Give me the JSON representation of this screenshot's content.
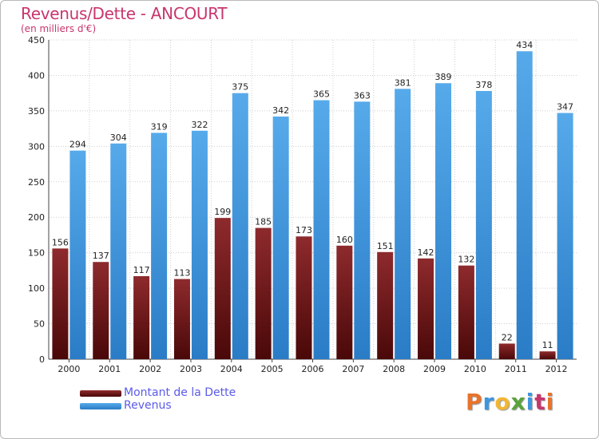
{
  "chart_data": {
    "type": "bar",
    "title": "Revenus/Dette - ANCOURT",
    "subtitle": "(en milliers d'€)",
    "xlabel": "",
    "ylabel": "",
    "ylim": [
      0,
      450
    ],
    "yticks": [
      0,
      50,
      100,
      150,
      200,
      250,
      300,
      350,
      400,
      450
    ],
    "grid": true,
    "legend_position": "bottom-left",
    "categories": [
      "2000",
      "2001",
      "2002",
      "2003",
      "2004",
      "2005",
      "2006",
      "2007",
      "2008",
      "2009",
      "2010",
      "2011",
      "2012"
    ],
    "series": [
      {
        "name": "Montant de la Dette",
        "color": "#7a1418",
        "values": [
          156,
          137,
          117,
          113,
          199,
          185,
          173,
          160,
          151,
          142,
          132,
          22,
          11
        ],
        "labels": [
          "156",
          "137",
          "117",
          "113",
          "199",
          "185",
          "173",
          "160",
          "151",
          "142",
          "132",
          "22",
          "11"
        ]
      },
      {
        "name": "Revenus",
        "color": "#3e96de",
        "values": [
          294,
          304,
          319,
          322,
          375,
          342,
          365,
          363,
          381,
          389,
          378,
          434,
          347
        ],
        "labels": [
          "294",
          "304",
          "319",
          "322",
          "375",
          "342",
          "365",
          "363",
          "381",
          "389",
          "378",
          "434",
          "347"
        ]
      }
    ]
  },
  "logo": {
    "letters": [
      {
        "char": "P",
        "color": "#e8732a"
      },
      {
        "char": "r",
        "color": "#3e96de"
      },
      {
        "char": "o",
        "color": "#f2b632"
      },
      {
        "char": "x",
        "color": "#5aa33b"
      },
      {
        "char": "i",
        "color": "#3e96de"
      },
      {
        "char": "t",
        "color": "#c8356d"
      },
      {
        "char": "i",
        "color": "#e8732a"
      }
    ]
  }
}
